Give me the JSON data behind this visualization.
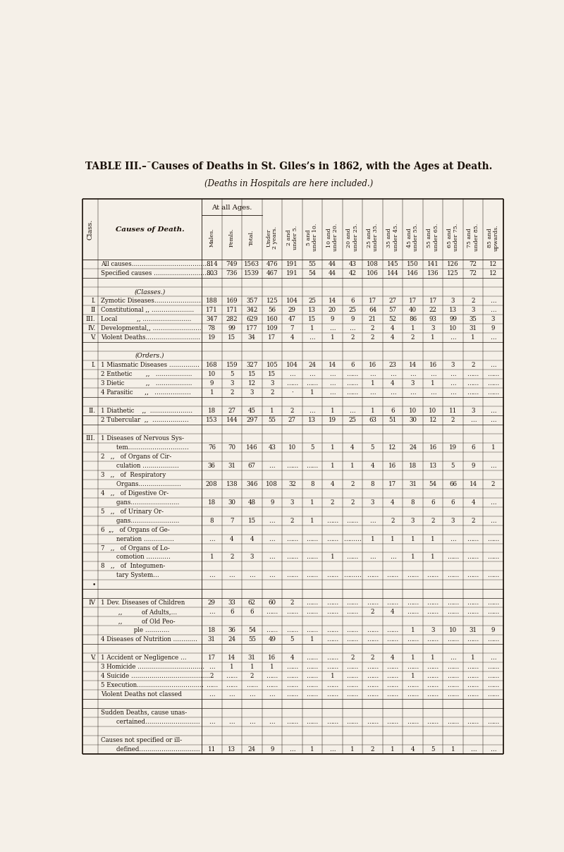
{
  "title": "TABLE III.–¯Causes of Deaths in St. Giles’s in 1862, with the Ages at Death.",
  "subtitle": "(Deaths in Hospitals are here included.)",
  "bg_color": "#f5f0e8",
  "text_color": "#1a1008",
  "rows": [
    {
      "class": "",
      "label": "All causes…………………………………",
      "data": [
        "814",
        "749",
        "1563",
        "476",
        "191",
        "55",
        "44",
        "43",
        "108",
        "145",
        "150",
        "141",
        "126",
        "72",
        "12"
      ],
      "spacer": false,
      "center_label": false
    },
    {
      "class": "",
      "label": "Specified causes …………………………",
      "data": [
        "803",
        "736",
        "1539",
        "467",
        "191",
        "54",
        "44",
        "42",
        "106",
        "144",
        "146",
        "136",
        "125",
        "72",
        "12"
      ],
      "spacer": false,
      "center_label": false
    },
    {
      "class": "",
      "label": "",
      "data": [
        "",
        "",
        "",
        "",
        "",
        "",
        "",
        "",
        "",
        "",
        "",
        "",
        "",
        "",
        ""
      ],
      "spacer": true,
      "center_label": false
    },
    {
      "class": "",
      "label": "(Classes.)",
      "data": [
        "",
        "",
        "",
        "",
        "",
        "",
        "",
        "",
        "",
        "",
        "",
        "",
        "",
        "",
        ""
      ],
      "spacer": false,
      "center_label": true
    },
    {
      "class": "I.",
      "label": "Zymotic Diseases……………………",
      "data": [
        "188",
        "169",
        "357",
        "125",
        "104",
        "25",
        "14",
        "6",
        "17",
        "27",
        "17",
        "17",
        "3",
        "2",
        "…"
      ],
      "spacer": false,
      "center_label": false
    },
    {
      "class": "II",
      "label": "Constitutional ,, …………………",
      "data": [
        "171",
        "171",
        "342",
        "56",
        "29",
        "13",
        "20",
        "25",
        "64",
        "57",
        "40",
        "22",
        "13",
        "3",
        "…"
      ],
      "spacer": false,
      "center_label": false
    },
    {
      "class": "III.",
      "label": "Local          ,, ……………………",
      "data": [
        "347",
        "282",
        "629",
        "160",
        "47",
        "15",
        "9",
        "9",
        "21",
        "52",
        "86",
        "93",
        "99",
        "35",
        "3"
      ],
      "spacer": false,
      "center_label": false
    },
    {
      "class": "IV.",
      "label": "Developmental,, ……………………",
      "data": [
        "78",
        "99",
        "177",
        "109",
        "7",
        "1",
        "…",
        "…",
        "2",
        "4",
        "1",
        "3",
        "10",
        "31",
        "9"
      ],
      "spacer": false,
      "center_label": false
    },
    {
      "class": "V.",
      "label": "Violent Deaths………………………",
      "data": [
        "19",
        "15",
        "34",
        "17",
        "4",
        "…",
        "1",
        "2",
        "2",
        "4",
        "2",
        "1",
        "…",
        "1",
        "…"
      ],
      "spacer": false,
      "center_label": false
    },
    {
      "class": "",
      "label": "",
      "data": [
        "",
        "",
        "",
        "",
        "",
        "",
        "",
        "",
        "",
        "",
        "",
        "",
        "",
        "",
        ""
      ],
      "spacer": true,
      "center_label": false
    },
    {
      "class": "",
      "label": "(Orders.)",
      "data": [
        "",
        "",
        "",
        "",
        "",
        "",
        "",
        "",
        "",
        "",
        "",
        "",
        "",
        "",
        ""
      ],
      "spacer": false,
      "center_label": true
    },
    {
      "class": "I.",
      "label": "1 Miasmatic Diseases ……………",
      "data": [
        "168",
        "159",
        "327",
        "105",
        "104",
        "24",
        "14",
        "6",
        "16",
        "23",
        "14",
        "16",
        "3",
        "2",
        "…"
      ],
      "spacer": false,
      "center_label": false
    },
    {
      "class": "",
      "label": "2 Enthetic       ,,   ………………",
      "data": [
        "10",
        "5",
        "15",
        "15",
        "…",
        "…",
        "…",
        "……",
        "…",
        "…",
        "…",
        "…",
        "…",
        "……",
        "……"
      ],
      "spacer": false,
      "center_label": false
    },
    {
      "class": "",
      "label": "3 Dietic           ,,   ………………",
      "data": [
        "9",
        "3",
        "12",
        "3",
        "……",
        "……",
        "…",
        "……",
        "1",
        "4",
        "3",
        "1",
        "…",
        "……",
        "……"
      ],
      "spacer": false,
      "center_label": false
    },
    {
      "class": "",
      "label": "4 Parasitic      ,,   ………………",
      "data": [
        "1",
        "2",
        "3",
        "2",
        "·",
        "1",
        "…",
        "……",
        "…",
        "…",
        "…",
        "…",
        "…",
        "……",
        "……"
      ],
      "spacer": false,
      "center_label": false
    },
    {
      "class": "",
      "label": "",
      "data": [
        "",
        "",
        "",
        "",
        "",
        "",
        "",
        "",
        "",
        "",
        "",
        "",
        "",
        "",
        ""
      ],
      "spacer": true,
      "center_label": false
    },
    {
      "class": "II.",
      "label": "1 Diathetic    ,,  …………………",
      "data": [
        "18",
        "27",
        "45",
        "1",
        "2",
        "…",
        "1",
        "…",
        "1",
        "6",
        "10",
        "10",
        "11",
        "3",
        "…"
      ],
      "spacer": false,
      "center_label": false
    },
    {
      "class": "",
      "label": "2 Tubercular  ,,  ………………",
      "data": [
        "153",
        "144",
        "297",
        "55",
        "27",
        "13",
        "19",
        "25",
        "63",
        "51",
        "30",
        "12",
        "2",
        "…",
        "…"
      ],
      "spacer": false,
      "center_label": false
    },
    {
      "class": "",
      "label": "",
      "data": [
        "",
        "",
        "",
        "",
        "",
        "",
        "",
        "",
        "",
        "",
        "",
        "",
        "",
        "",
        ""
      ],
      "spacer": true,
      "center_label": false
    },
    {
      "class": "III.",
      "label": "1 Diseases of Nervous Sys-",
      "data": [
        "",
        "",
        "",
        "",
        "",
        "",
        "",
        "",
        "",
        "",
        "",
        "",
        "",
        "",
        ""
      ],
      "spacer": false,
      "center_label": false
    },
    {
      "class": "",
      "label": "        tem…………………………",
      "data": [
        "76",
        "70",
        "146",
        "43",
        "10",
        "5",
        "1",
        "4",
        "5",
        "12",
        "24",
        "16",
        "19",
        "6",
        "1"
      ],
      "spacer": false,
      "center_label": false
    },
    {
      "class": "",
      "label": "2   ,,   of Organs of Cir-",
      "data": [
        "",
        "",
        "",
        "",
        "",
        "",
        "",
        "",
        "",
        "",
        "",
        "",
        "",
        "",
        ""
      ],
      "spacer": false,
      "center_label": false
    },
    {
      "class": "",
      "label": "        culation ………………",
      "data": [
        "36",
        "31",
        "67",
        "…",
        "……",
        "……",
        "1",
        "1",
        "4",
        "16",
        "18",
        "13",
        "5",
        "9",
        "…"
      ],
      "spacer": false,
      "center_label": false
    },
    {
      "class": "",
      "label": "3   ,,   of  Respiratory",
      "data": [
        "",
        "",
        "",
        "",
        "",
        "",
        "",
        "",
        "",
        "",
        "",
        "",
        "",
        "",
        ""
      ],
      "spacer": false,
      "center_label": false
    },
    {
      "class": "",
      "label": "        Organs…………………",
      "data": [
        "208",
        "138",
        "346",
        "108",
        "32",
        "8",
        "4",
        "2",
        "8",
        "17",
        "31",
        "54",
        "66",
        "14",
        "2"
      ],
      "spacer": false,
      "center_label": false
    },
    {
      "class": "",
      "label": "4   ,,   of Digestive Or-",
      "data": [
        "",
        "",
        "",
        "",
        "",
        "",
        "",
        "",
        "",
        "",
        "",
        "",
        "",
        "",
        ""
      ],
      "spacer": false,
      "center_label": false
    },
    {
      "class": "",
      "label": "        gans……………………",
      "data": [
        "18",
        "30",
        "48",
        "9",
        "3",
        "1",
        "2",
        "2",
        "3",
        "4",
        "8",
        "6",
        "6",
        "4",
        "…"
      ],
      "spacer": false,
      "center_label": false
    },
    {
      "class": "",
      "label": "5   ,,   of Urinary Or-",
      "data": [
        "",
        "",
        "",
        "",
        "",
        "",
        "",
        "",
        "",
        "",
        "",
        "",
        "",
        "",
        ""
      ],
      "spacer": false,
      "center_label": false
    },
    {
      "class": "",
      "label": "        gans……………………",
      "data": [
        "8",
        "7",
        "15",
        "…",
        "2",
        "1",
        "……",
        "……",
        "…",
        "2",
        "3",
        "2",
        "3",
        "2",
        "…"
      ],
      "spacer": false,
      "center_label": false
    },
    {
      "class": "",
      "label": "6  „,   of Organs of Ge-",
      "data": [
        "",
        "",
        "",
        "",
        "",
        "",
        "",
        "",
        "",
        "",
        "",
        "",
        "",
        "",
        ""
      ],
      "spacer": false,
      "center_label": false
    },
    {
      "class": "",
      "label": "        neration ……………",
      "data": [
        "…",
        "4",
        "4",
        "…",
        "……",
        "……",
        "……",
        "………",
        "1",
        "1",
        "1",
        "1",
        "…",
        "……",
        "……"
      ],
      "spacer": false,
      "center_label": false
    },
    {
      "class": "",
      "label": "7   ,,   of Organs of Lo-",
      "data": [
        "",
        "",
        "",
        "",
        "",
        "",
        "",
        "",
        "",
        "",
        "",
        "",
        "",
        "",
        ""
      ],
      "spacer": false,
      "center_label": false
    },
    {
      "class": "",
      "label": "        comotion …………",
      "data": [
        "1",
        "2",
        "3",
        "…",
        "……",
        "……",
        "1",
        "……",
        "…",
        "…",
        "1",
        "1",
        "……",
        "……",
        "……"
      ],
      "spacer": false,
      "center_label": false
    },
    {
      "class": "",
      "label": "8   ,,   of  Integumen-",
      "data": [
        "",
        "",
        "",
        "",
        "",
        "",
        "",
        "",
        "",
        "",
        "",
        "",
        "",
        "",
        ""
      ],
      "spacer": false,
      "center_label": false
    },
    {
      "class": "",
      "label": "        tary System…",
      "data": [
        "…",
        "…",
        "…",
        "…",
        "……",
        "……",
        "……",
        "………",
        "……",
        "……",
        "……",
        "……",
        "……",
        "……",
        "……"
      ],
      "spacer": false,
      "center_label": false
    },
    {
      "class": "    •",
      "label": "",
      "data": [
        "",
        "",
        "",
        "",
        "",
        "",
        "",
        "",
        "",
        "",
        "",
        "",
        "",
        "",
        ""
      ],
      "spacer": true,
      "center_label": false
    },
    {
      "class": "",
      "label": "",
      "data": [
        "",
        "",
        "",
        "",
        "",
        "",
        "",
        "",
        "",
        "",
        "",
        "",
        "",
        "",
        ""
      ],
      "spacer": true,
      "center_label": false
    },
    {
      "class": "IV",
      "label": "1 Dev. Diseases of Children",
      "data": [
        "29",
        "33",
        "62",
        "60",
        "2",
        "……",
        "……",
        "……",
        "……",
        "……",
        "……",
        "……",
        "……",
        "……",
        "……"
      ],
      "spacer": false,
      "center_label": false
    },
    {
      "class": "",
      "label": "         ,,          of Adults,…",
      "data": [
        "…",
        "6",
        "6",
        "……",
        "……",
        "……",
        "……",
        "……",
        "2",
        "4",
        "……",
        "……",
        "……",
        "……",
        "……"
      ],
      "spacer": false,
      "center_label": false
    },
    {
      "class": "",
      "label": "         ,,          of Old Peo-",
      "data": [
        "",
        "",
        "",
        "",
        "",
        "",
        "",
        "",
        "",
        "",
        "",
        "",
        "",
        "",
        ""
      ],
      "spacer": false,
      "center_label": false
    },
    {
      "class": "",
      "label": "                 ple …………",
      "data": [
        "18",
        "36",
        "54",
        "……",
        "……",
        "……",
        "……",
        "……",
        "……",
        "……",
        "1",
        "3",
        "10",
        "31",
        "9"
      ],
      "spacer": false,
      "center_label": false
    },
    {
      "class": "",
      "label": "4 Diseases of Nutrition …………",
      "data": [
        "31",
        "24",
        "55",
        "49",
        "5",
        "1",
        "……",
        "……",
        "……",
        "……",
        "……",
        "……",
        "……",
        "……",
        "……"
      ],
      "spacer": false,
      "center_label": false
    },
    {
      "class": "",
      "label": "",
      "data": [
        "",
        "",
        "",
        "",
        "",
        "",
        "",
        "",
        "",
        "",
        "",
        "",
        "",
        "",
        ""
      ],
      "spacer": true,
      "center_label": false
    },
    {
      "class": "V.",
      "label": "1 Accident or Negligence …",
      "data": [
        "17",
        "14",
        "31",
        "16",
        "4",
        "……",
        "……",
        "2",
        "2",
        "4",
        "1",
        "1",
        "…",
        "1",
        "…"
      ],
      "spacer": false,
      "center_label": false
    },
    {
      "class": "",
      "label": "3 Homicide ……………………………",
      "data": [
        "…",
        "1",
        "1",
        "1",
        "……",
        "……",
        "……",
        "……",
        "……",
        "……",
        "……",
        "……",
        "……",
        "……",
        "……"
      ],
      "spacer": false,
      "center_label": false
    },
    {
      "class": "",
      "label": "4 Suicide …………………………………",
      "data": [
        "2",
        "……",
        "2",
        "……",
        "……",
        "……",
        "1",
        "……",
        "……",
        "……",
        "1",
        "……",
        "……",
        "……",
        "……"
      ],
      "spacer": false,
      "center_label": false
    },
    {
      "class": "",
      "label": "5 Execution……………………………",
      "data": [
        "……",
        "……",
        "……",
        "……",
        "……",
        "……",
        "……",
        "……",
        "……",
        "……",
        "……",
        "……",
        "……",
        "……",
        "……"
      ],
      "spacer": false,
      "center_label": false
    },
    {
      "class": "",
      "label": "Violent Deaths not classed",
      "data": [
        "…",
        "…",
        "…",
        "…",
        "……",
        "……",
        "……",
        "……",
        "……",
        "……",
        "……",
        "……",
        "……",
        "……",
        "……"
      ],
      "spacer": false,
      "center_label": false
    },
    {
      "class": "",
      "label": "",
      "data": [
        "",
        "",
        "",
        "",
        "",
        "",
        "",
        "",
        "",
        "",
        "",
        "",
        "",
        "",
        ""
      ],
      "spacer": true,
      "center_label": false
    },
    {
      "class": "",
      "label": "Sudden Deaths, cause unas-",
      "data": [
        "",
        "",
        "",
        "",
        "",
        "",
        "",
        "",
        "",
        "",
        "",
        "",
        "",
        "",
        ""
      ],
      "spacer": false,
      "center_label": false
    },
    {
      "class": "",
      "label": "        certained………………………",
      "data": [
        "…",
        "…",
        "…",
        "…",
        "……",
        "……",
        "……",
        "……",
        "……",
        "……",
        "……",
        "……",
        "……",
        "……",
        "……"
      ],
      "spacer": false,
      "center_label": false
    },
    {
      "class": "",
      "label": "",
      "data": [
        "",
        "",
        "",
        "",
        "",
        "",
        "",
        "",
        "",
        "",
        "",
        "",
        "",
        "",
        ""
      ],
      "spacer": true,
      "center_label": false
    },
    {
      "class": "",
      "label": "Causes not specified or ill-",
      "data": [
        "",
        "",
        "",
        "",
        "",
        "",
        "",
        "",
        "",
        "",
        "",
        "",
        "",
        "",
        ""
      ],
      "spacer": false,
      "center_label": false
    },
    {
      "class": "",
      "label": "        defined…………………………",
      "data": [
        "11",
        "13",
        "24",
        "9",
        "…",
        "1",
        "…",
        "1",
        "2",
        "1",
        "4",
        "5",
        "1",
        "…",
        "…"
      ],
      "spacer": false,
      "center_label": false
    }
  ]
}
